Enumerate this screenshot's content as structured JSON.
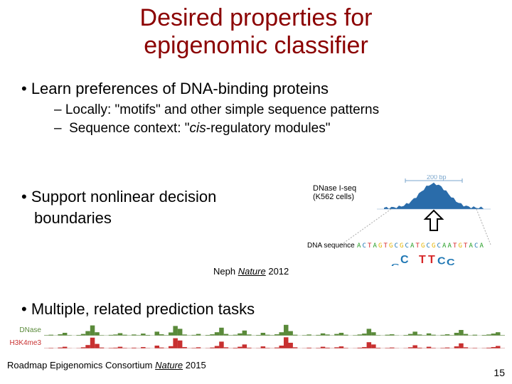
{
  "title_line1": "Desired properties for",
  "title_line2": "epigenomic classifier",
  "title_color": "#8b0000",
  "bullet1": "•  Learn preferences of DNA-binding proteins",
  "sub1": "–  Locally: \"motifs\" and other simple sequence patterns",
  "sub2": "–  Sequence context: \"cis-regulatory modules\"",
  "bullet2_line1": "•  Support nonlinear decision",
  "bullet2_line2": "boundaries",
  "citation1_pre": "Neph ",
  "citation1_journal": "Nature",
  "citation1_year": " 2012",
  "bullet3": "•  Multiple, related prediction tasks",
  "citation2_pre": "Roadmap Epigenomics Consortium ",
  "citation2_journal": "Nature",
  "citation2_year": " 2015",
  "pagenum": "15",
  "figure1": {
    "scale_label": "200 bp",
    "track_label": "DNase I-seq",
    "track_sub": "(K562 cells)",
    "track_label_color": "#1f5fa8",
    "peak_color": "#2a6caa",
    "sequence_label": "DNA sequence",
    "sequence": "ACTAGTGCGCATGCGCAATGTACA",
    "logo_text": "CCGTTCCA",
    "logo_colors": {
      "A": "#2aa02a",
      "C": "#1f77b4",
      "G": "#e5b400",
      "T": "#d62728"
    }
  },
  "tracks": {
    "labels": [
      "DNase",
      "H3K4me3"
    ],
    "colors": [
      "#5a8a3a",
      "#c83030"
    ],
    "values": [
      [
        0.05,
        0.08,
        0.03,
        0.12,
        0.25,
        0.05,
        0.02,
        0.06,
        0.15,
        0.4,
        0.9,
        0.3,
        0.05,
        0.03,
        0.07,
        0.1,
        0.22,
        0.08,
        0.04,
        0.1,
        0.05,
        0.18,
        0.06,
        0.03,
        0.35,
        0.12,
        0.05,
        0.28,
        0.85,
        0.6,
        0.1,
        0.04,
        0.07,
        0.15,
        0.02,
        0.06,
        0.12,
        0.3,
        0.7,
        0.15,
        0.05,
        0.08,
        0.2,
        0.45,
        0.1,
        0.03,
        0.06,
        0.25,
        0.08,
        0.05,
        0.12,
        0.3,
        0.95,
        0.4,
        0.08,
        0.02,
        0.05,
        0.1,
        0.03,
        0.07,
        0.2,
        0.1,
        0.04,
        0.15,
        0.25,
        0.08,
        0.02,
        0.05,
        0.1,
        0.18,
        0.6,
        0.3,
        0.05,
        0.03,
        0.08,
        0.12,
        0.04,
        0.02,
        0.06,
        0.15,
        0.35,
        0.1,
        0.05,
        0.2,
        0.08,
        0.03,
        0.07,
        0.12,
        0.05,
        0.25,
        0.5,
        0.15,
        0.04,
        0.08,
        0.02,
        0.06,
        0.1,
        0.18,
        0.3,
        0.05
      ],
      [
        0.03,
        0.05,
        0.02,
        0.08,
        0.15,
        0.03,
        0.01,
        0.04,
        0.1,
        0.3,
        0.95,
        0.4,
        0.08,
        0.02,
        0.05,
        0.07,
        0.15,
        0.05,
        0.03,
        0.07,
        0.03,
        0.12,
        0.04,
        0.02,
        0.25,
        0.08,
        0.03,
        0.2,
        0.9,
        0.7,
        0.12,
        0.03,
        0.05,
        0.1,
        0.01,
        0.04,
        0.08,
        0.22,
        0.6,
        0.1,
        0.03,
        0.06,
        0.15,
        0.35,
        0.07,
        0.02,
        0.04,
        0.18,
        0.05,
        0.03,
        0.08,
        0.25,
        0.98,
        0.5,
        0.1,
        0.01,
        0.03,
        0.07,
        0.02,
        0.05,
        0.15,
        0.07,
        0.03,
        0.1,
        0.18,
        0.05,
        0.01,
        0.03,
        0.07,
        0.12,
        0.55,
        0.35,
        0.06,
        0.02,
        0.05,
        0.08,
        0.03,
        0.01,
        0.04,
        0.1,
        0.28,
        0.07,
        0.03,
        0.15,
        0.05,
        0.02,
        0.05,
        0.08,
        0.03,
        0.18,
        0.45,
        0.1,
        0.03,
        0.05,
        0.01,
        0.04,
        0.07,
        0.12,
        0.22,
        0.03
      ]
    ]
  }
}
